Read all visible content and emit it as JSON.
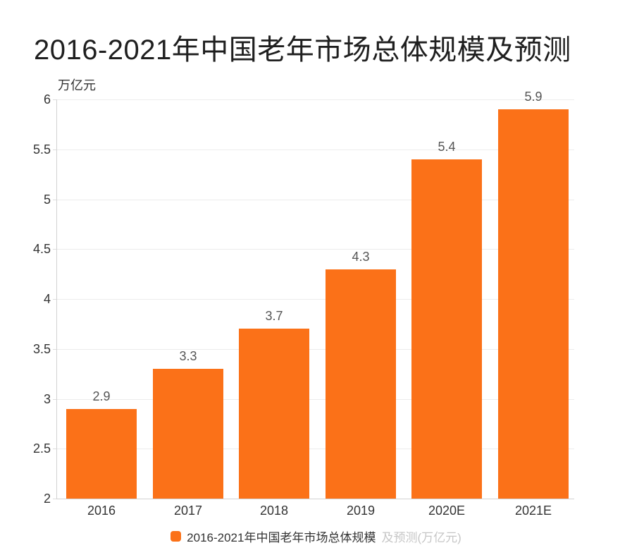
{
  "title": "2016-2021年中国老年市场总体规模及预测",
  "chart_data": {
    "type": "bar",
    "categories": [
      "2016",
      "2017",
      "2018",
      "2019",
      "2020E",
      "2021E"
    ],
    "values": [
      2.9,
      3.3,
      3.7,
      4.3,
      5.4,
      5.9
    ],
    "value_labels": [
      "2.9",
      "3.3",
      "3.7",
      "4.3",
      "5.4",
      "5.9"
    ],
    "title": "2016-2021年中国老年市场总体规模及预测",
    "xlabel": "",
    "ylabel": "万亿元",
    "ylim": [
      2,
      6
    ],
    "yticks": [
      2,
      2.5,
      3,
      3.5,
      4,
      4.5,
      5,
      5.5,
      6
    ],
    "ytick_labels": [
      "2",
      "2.5",
      "3",
      "3.5",
      "4",
      "4.5",
      "5",
      "5.5",
      "6"
    ],
    "grid": true,
    "legend_position": "bottom",
    "series_name": "2016-2021年中国老年市场总体规模及预测(万亿元)"
  },
  "legend": {
    "label_main": "2016-2021年中国老年市场总体规模",
    "label_faded": "及预测(万亿元)"
  },
  "colors": {
    "bar": "#FB7118",
    "grid": "#ececec",
    "axis": "#d2d2d2",
    "tick_text": "#333333",
    "data_label": "#555555",
    "title_text": "#1f1f1f"
  }
}
